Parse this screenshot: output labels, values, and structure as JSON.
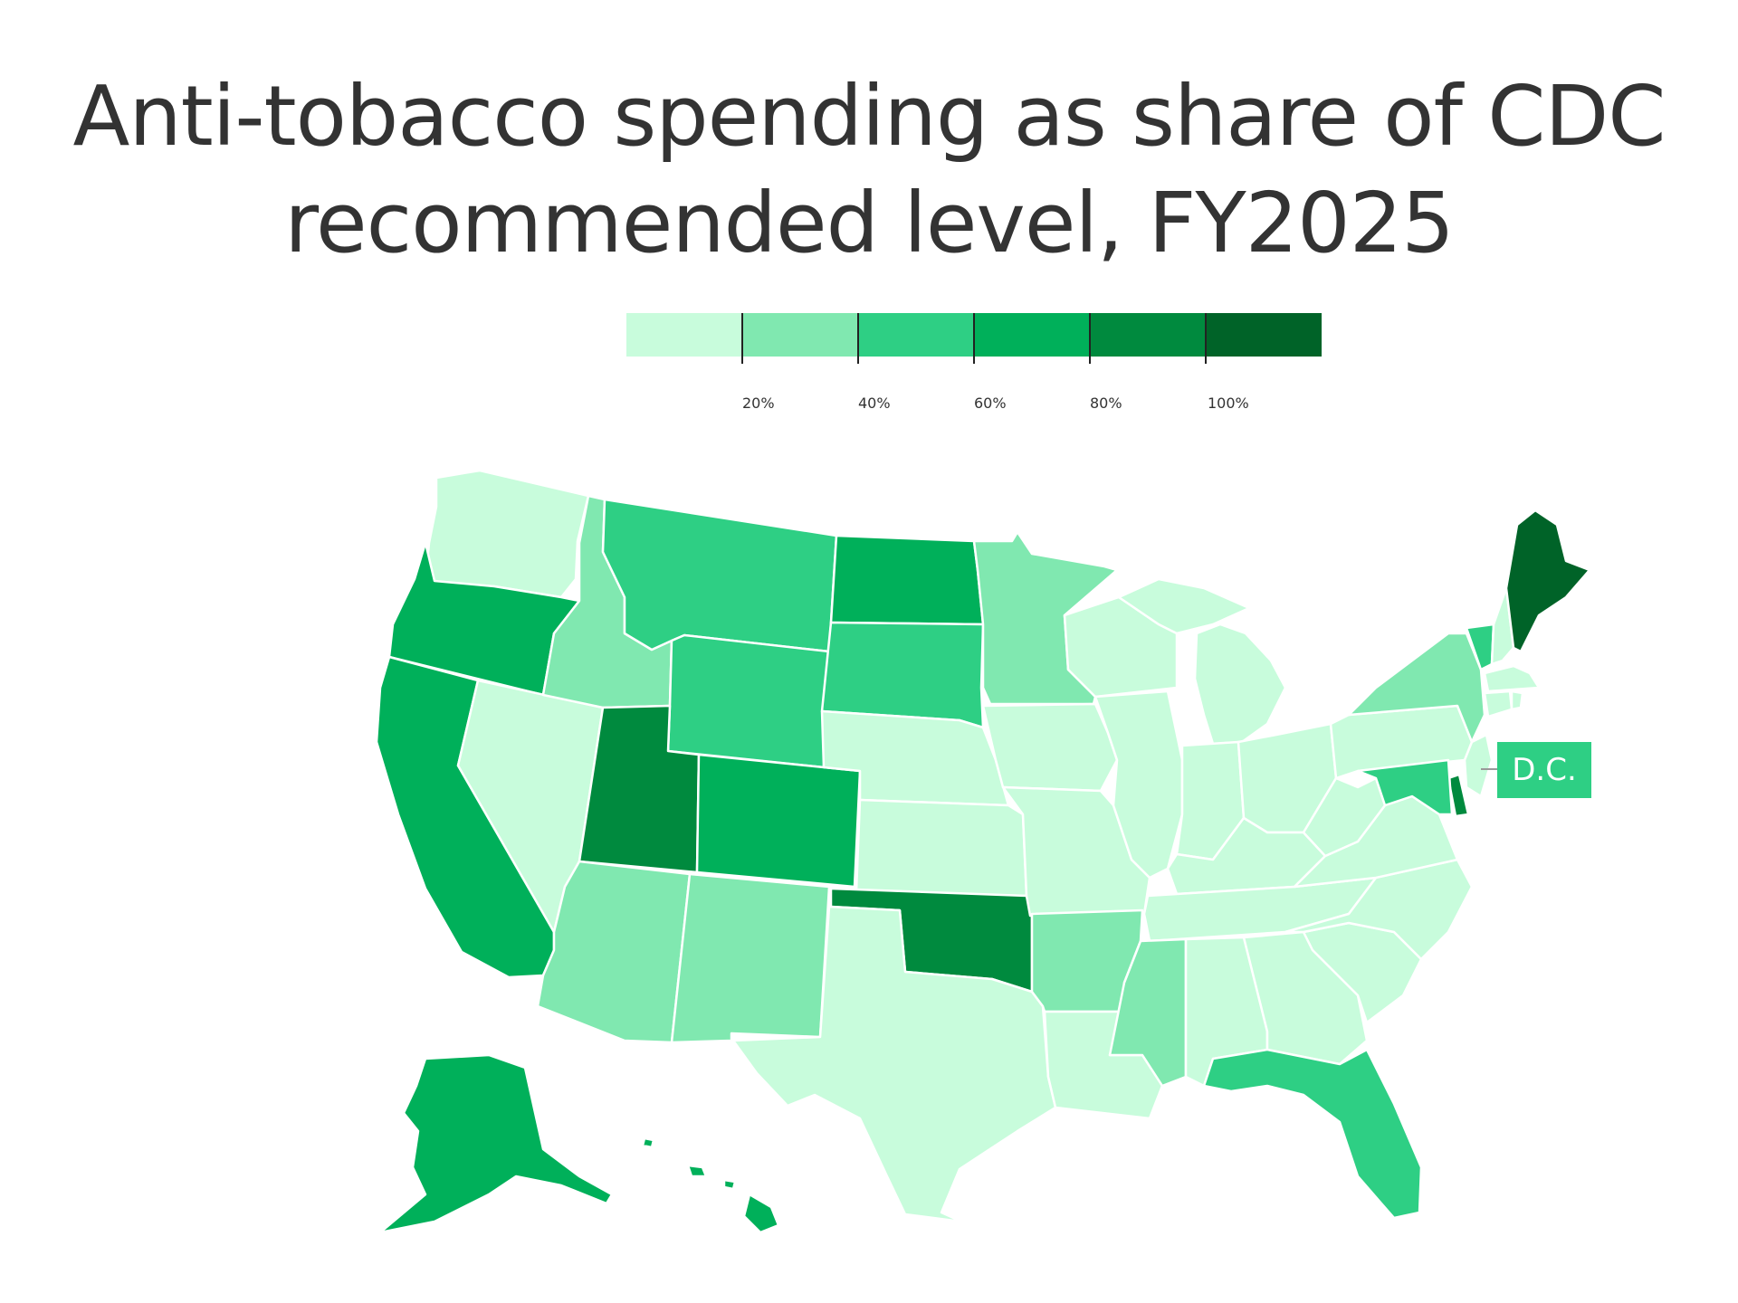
{
  "title_line1": "Anti-tobacco spending as share of CDC",
  "title_line2": "recommended level, FY2025",
  "legend": {
    "colors": [
      "#c8fcdc",
      "#80e8b0",
      "#2ecf84",
      "#00b05a",
      "#008a3e",
      "#006328"
    ],
    "labels": [
      "20%",
      "40%",
      "60%",
      "80%",
      "100%"
    ]
  },
  "dc_label": "D.C.",
  "chart_data": {
    "type": "choropleth",
    "title": "Anti-tobacco spending as share of CDC recommended level, FY2025",
    "bins": [
      "<20%",
      "20-40%",
      "40-60%",
      "60-80%",
      "80-100%",
      ">100%"
    ],
    "states": {
      "WA": 0,
      "OR": 3,
      "CA": 3,
      "NV": 0,
      "ID": 1,
      "MT": 2,
      "WY": 2,
      "UT": 4,
      "CO": 3,
      "AZ": 1,
      "NM": 1,
      "ND": 3,
      "SD": 2,
      "NE": 0,
      "KS": 0,
      "OK": 4,
      "TX": 0,
      "MN": 1,
      "IA": 0,
      "MO": 0,
      "AR": 1,
      "LA": 0,
      "WI": 0,
      "IL": 0,
      "MS": 1,
      "MI": 0,
      "IN": 0,
      "KY": 0,
      "TN": 0,
      "AL": 0,
      "OH": 0,
      "GA": 0,
      "FL": 2,
      "SC": 0,
      "NC": 0,
      "VA": 0,
      "WV": 0,
      "PA": 0,
      "NY": 1,
      "VT": 2,
      "NH": 0,
      "ME": 5,
      "MA": 0,
      "CT": 0,
      "RI": 0,
      "NJ": 0,
      "DE": 4,
      "MD": 2,
      "DC": 2,
      "AK": 3,
      "HI": 3
    }
  }
}
